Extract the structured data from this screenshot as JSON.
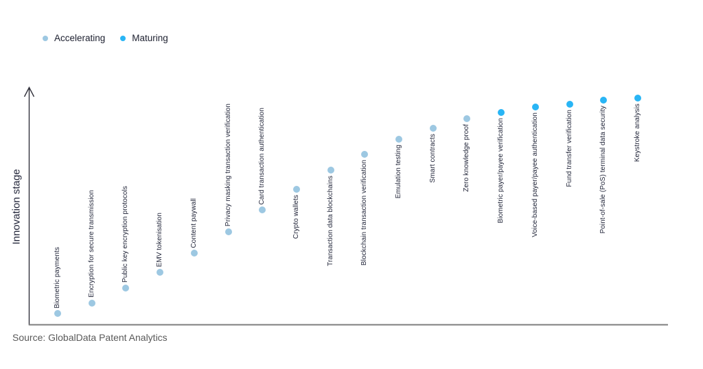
{
  "chart_data": {
    "type": "scatter",
    "title": "",
    "ylabel": "Innovation stage",
    "xlabel": "",
    "grid": false,
    "legend_position": "top-left",
    "y_axis": {
      "style": "arrow",
      "tick_labels": "none"
    },
    "legend": [
      {
        "key": "accelerating",
        "label": "Accelerating"
      },
      {
        "key": "maturing",
        "label": "Maturing"
      }
    ],
    "colors": {
      "accelerating": "#9DC8E2",
      "maturing": "#29B5F5"
    },
    "points": [
      {
        "label": "Biometric payments",
        "category": "accelerating",
        "stage": 0.046,
        "label_side": "above"
      },
      {
        "label": "Encryption for secure transmission",
        "category": "accelerating",
        "stage": 0.09,
        "label_side": "above"
      },
      {
        "label": "Public key encryption protocols",
        "category": "accelerating",
        "stage": 0.154,
        "label_side": "above"
      },
      {
        "label": "EMV tokenisation",
        "category": "accelerating",
        "stage": 0.22,
        "label_side": "above"
      },
      {
        "label": "Content paywall",
        "category": "accelerating",
        "stage": 0.301,
        "label_side": "above"
      },
      {
        "label": "Privacy masking transaction verification",
        "category": "accelerating",
        "stage": 0.391,
        "label_side": "above"
      },
      {
        "label": "Card transaction authentication",
        "category": "accelerating",
        "stage": 0.484,
        "label_side": "above"
      },
      {
        "label": "Crypto wallets",
        "category": "accelerating",
        "stage": 0.571,
        "label_side": "below"
      },
      {
        "label": "Transaction data blockchains",
        "category": "accelerating",
        "stage": 0.652,
        "label_side": "below"
      },
      {
        "label": "Blockchain transaction verification",
        "category": "accelerating",
        "stage": 0.719,
        "label_side": "below"
      },
      {
        "label": "Emulation testing",
        "category": "accelerating",
        "stage": 0.783,
        "label_side": "below"
      },
      {
        "label": "Smart contracts",
        "category": "accelerating",
        "stage": 0.829,
        "label_side": "below"
      },
      {
        "label": "Zero knowledge proof",
        "category": "accelerating",
        "stage": 0.87,
        "label_side": "below"
      },
      {
        "label": "Biometric payer/payee verification",
        "category": "maturing",
        "stage": 0.896,
        "label_side": "below"
      },
      {
        "label": "Voice-based payer/payee authentication",
        "category": "maturing",
        "stage": 0.919,
        "label_side": "below"
      },
      {
        "label": "Fund transfer verification",
        "category": "maturing",
        "stage": 0.93,
        "label_side": "below"
      },
      {
        "label": "Point-of-sale (PoS) terminal data security",
        "category": "maturing",
        "stage": 0.948,
        "label_side": "below"
      },
      {
        "label": "Keystroke analysis",
        "category": "maturing",
        "stage": 0.957,
        "label_side": "below"
      }
    ]
  },
  "source": "Source: GlobalData Patent Analytics"
}
